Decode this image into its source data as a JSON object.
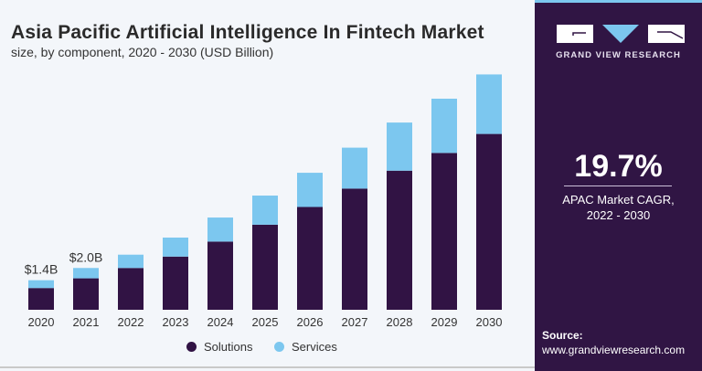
{
  "chart_data": {
    "type": "bar",
    "stacked": true,
    "title": "Asia Pacific Artificial Intelligence In Fintech Market",
    "subtitle": "size, by component, 2020 - 2030 (USD Billion)",
    "categories": [
      "2020",
      "2021",
      "2022",
      "2023",
      "2024",
      "2025",
      "2026",
      "2027",
      "2028",
      "2029",
      "2030"
    ],
    "series": [
      {
        "name": "Solutions",
        "color": "#311344",
        "values": [
          1.03,
          1.49,
          1.98,
          2.52,
          3.23,
          4.03,
          4.87,
          5.74,
          6.59,
          7.43,
          8.33
        ]
      },
      {
        "name": "Services",
        "color": "#7cc7ef",
        "values": [
          0.37,
          0.49,
          0.63,
          0.9,
          1.14,
          1.38,
          1.62,
          1.94,
          2.28,
          2.57,
          2.82
        ]
      }
    ],
    "data_labels": [
      {
        "category": "2020",
        "text": "$1.4B"
      },
      {
        "category": "2021",
        "text": "$2.0B"
      }
    ],
    "ylim": [
      0,
      11.5
    ],
    "grid": false,
    "legend": "bottom"
  },
  "panel": {
    "brand": "GRAND VIEW RESEARCH",
    "cagr_value": "19.7%",
    "cagr_label_line1": "APAC Market CAGR,",
    "cagr_label_line2": "2022 - 2030",
    "source_label": "Source:",
    "source_url": "www.grandviewresearch.com"
  }
}
